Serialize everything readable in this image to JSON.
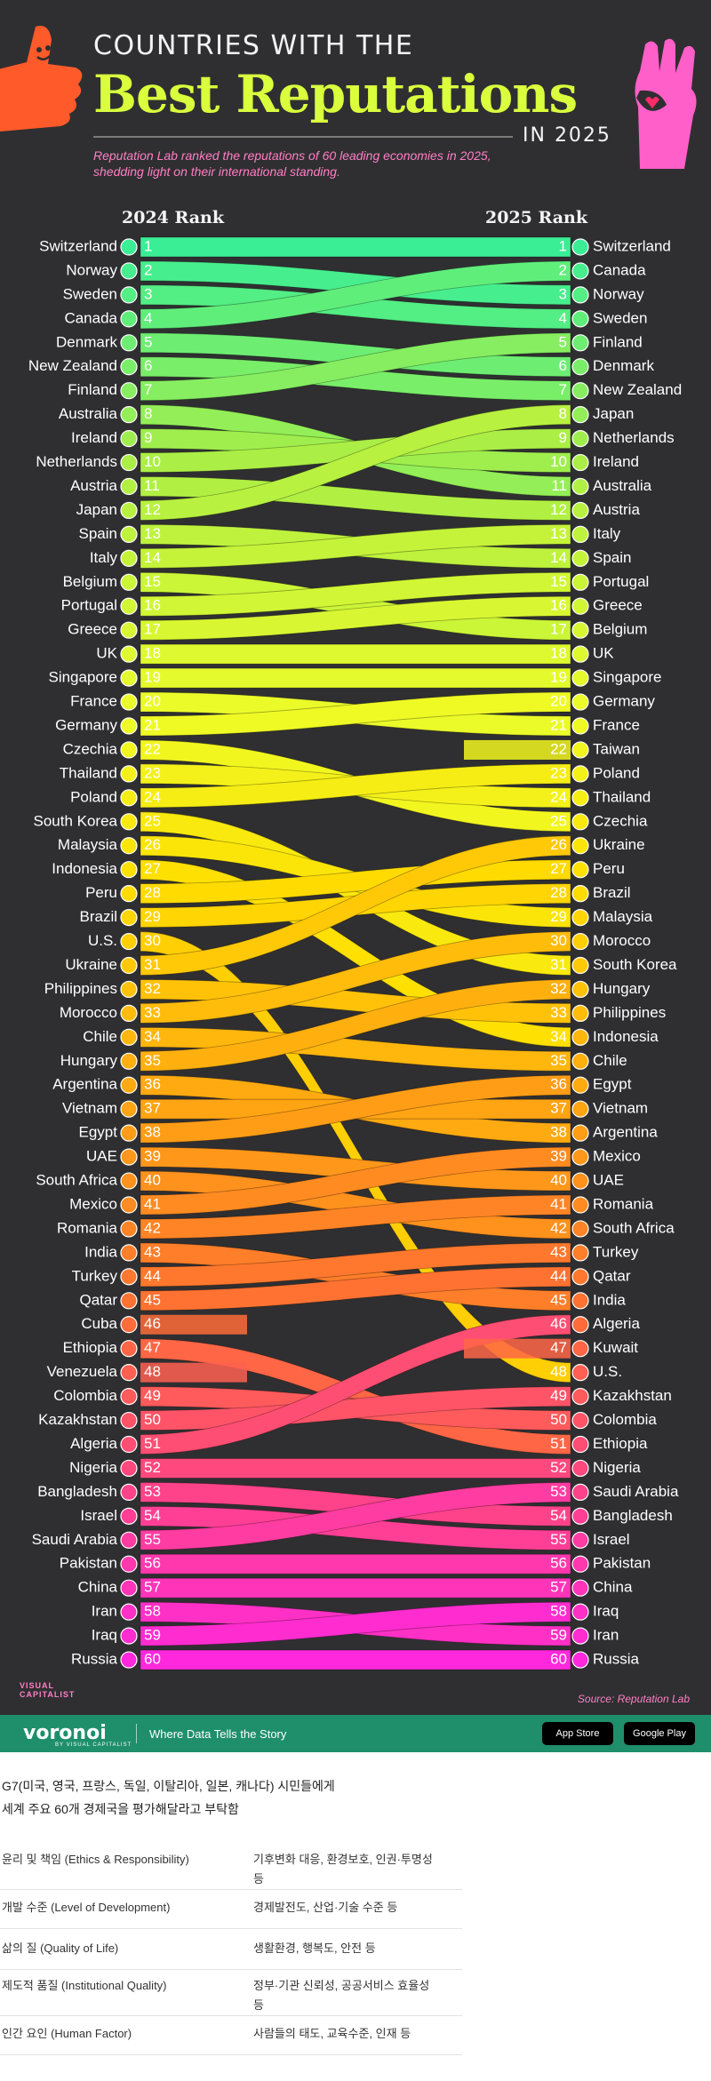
{
  "header": {
    "line1": "COUNTRIES WITH THE",
    "title": "Best Reputations",
    "year": "IN 2025",
    "subtitle": "Reputation Lab ranked the reputations of 60 leading economies in 2025, shedding light on their international standing."
  },
  "columns": {
    "left": "2024 Rank",
    "right": "2025 Rank"
  },
  "source": "Source: Reputation Lab",
  "brand": {
    "name_line1": "VISUAL",
    "name_line2": "CAPITALIST"
  },
  "footer": {
    "logo": "voronoi",
    "logo_sub": "BY VISUAL CAPITALIST",
    "tagline": "Where Data Tells the Story",
    "app_store": "App Store",
    "google_play": "Google Play",
    "color": "#1e8f6a"
  },
  "colors": {
    "background": "#2f2f31",
    "title": "#d9ff3d",
    "accent": "#ff7fc5"
  },
  "chart_data": {
    "type": "bump",
    "x": [
      "2024 Rank",
      "2025 Rank"
    ],
    "ylim": [
      1,
      60
    ],
    "rank_2024": [
      "Switzerland",
      "Norway",
      "Sweden",
      "Canada",
      "Denmark",
      "New Zealand",
      "Finland",
      "Australia",
      "Ireland",
      "Netherlands",
      "Austria",
      "Japan",
      "Spain",
      "Italy",
      "Belgium",
      "Portugal",
      "Greece",
      "UK",
      "Singapore",
      "France",
      "Germany",
      "Czechia",
      "Thailand",
      "Poland",
      "South Korea",
      "Malaysia",
      "Indonesia",
      "Peru",
      "Brazil",
      "U.S.",
      "Ukraine",
      "Philippines",
      "Morocco",
      "Chile",
      "Hungary",
      "Argentina",
      "Vietnam",
      "Egypt",
      "UAE",
      "South Africa",
      "Mexico",
      "Romania",
      "India",
      "Turkey",
      "Qatar",
      "Cuba",
      "Ethiopia",
      "Venezuela",
      "Colombia",
      "Kazakhstan",
      "Algeria",
      "Nigeria",
      "Bangladesh",
      "Israel",
      "Saudi Arabia",
      "Pakistan",
      "China",
      "Iran",
      "Iraq",
      "Russia"
    ],
    "rank_2025": [
      "Switzerland",
      "Canada",
      "Norway",
      "Sweden",
      "Finland",
      "Denmark",
      "New Zealand",
      "Japan",
      "Netherlands",
      "Ireland",
      "Australia",
      "Austria",
      "Italy",
      "Spain",
      "Portugal",
      "Greece",
      "Belgium",
      "UK",
      "Singapore",
      "Germany",
      "France",
      "Taiwan",
      "Poland",
      "Thailand",
      "Czechia",
      "Ukraine",
      "Peru",
      "Brazil",
      "Malaysia",
      "Morocco",
      "South Korea",
      "Hungary",
      "Philippines",
      "Indonesia",
      "Chile",
      "Egypt",
      "Vietnam",
      "Argentina",
      "Mexico",
      "UAE",
      "Romania",
      "South Africa",
      "Turkey",
      "Qatar",
      "India",
      "Algeria",
      "Kuwait",
      "U.S.",
      "Kazakhstan",
      "Colombia",
      "Ethiopia",
      "Nigeria",
      "Saudi Arabia",
      "Bangladesh",
      "Israel",
      "Pakistan",
      "China",
      "Iraq",
      "Iran",
      "Russia"
    ]
  },
  "notes": {
    "intro_line1": "G7(미국, 영국, 프랑스, 독일, 이탈리아, 일본, 캐나다) 시민들에게",
    "intro_line2": "세계 주요 60개 경제국을 평가해달라고 부탁함",
    "rows": [
      {
        "factor": "윤리 및 책임 (Ethics & Responsibility)",
        "detail_line1": "기후변화 대응, 환경보호, 인권·투명성",
        "detail_line2": "등"
      },
      {
        "factor": "개발 수준 (Level of Development)",
        "detail_line1": "경제발전도, 산업·기술 수준 등",
        "detail_line2": ""
      },
      {
        "factor": "삶의 질 (Quality of Life)",
        "detail_line1": "생활환경, 행복도, 안전 등",
        "detail_line2": ""
      },
      {
        "factor": "제도적 품질 (Institutional Quality)",
        "detail_line1": "정부·기관 신뢰성, 공공서비스 효율성",
        "detail_line2": "등"
      },
      {
        "factor": "인간 요인 (Human Factor)",
        "detail_line1": "사람들의 태도, 교육수준, 인재 등",
        "detail_line2": ""
      }
    ]
  }
}
